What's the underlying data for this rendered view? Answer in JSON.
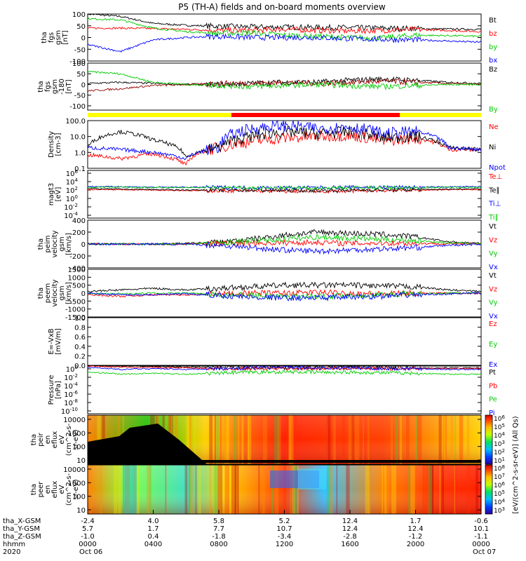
{
  "chart_data": {
    "type": "line",
    "title": "P5 (TH-A) fields and on-board moments overview",
    "x_tick_labels": {
      "tha_X-GSM": [
        "-2.4",
        "4.0",
        "5.8",
        "5.2",
        "12.4",
        "1.7",
        "-0.6"
      ],
      "tha_Y-GSM": [
        "5.7",
        "1.7",
        "7.7",
        "10.7",
        "12.4",
        "12.4",
        "10.1"
      ],
      "tha_Z-GSM": [
        "-1.0",
        "0.4",
        "-1.8",
        "-3.4",
        "-2.8",
        "-1.2",
        "-1.1"
      ],
      "hhmm": [
        "0000",
        "0400",
        "0800",
        "1200",
        "1600",
        "2000",
        "0000"
      ],
      "dates": [
        "Oct 06",
        "",
        "",
        "",
        "",
        "",
        "Oct 07"
      ]
    },
    "x_row_labels": [
      "tha_X-GSM",
      "tha_Y-GSM",
      "tha_Z-GSM",
      "hhmm",
      "2020"
    ],
    "x_range_hours": [
      0,
      24
    ],
    "panels": [
      {
        "id": "fgs-gsm",
        "ylabel": [
          "tha",
          "fgs",
          "gsm",
          "[nT]"
        ],
        "yticks": [
          "100",
          "50",
          "0",
          "-50",
          "-100"
        ],
        "yrange": [
          -100,
          100
        ],
        "series": [
          {
            "name": "Bt",
            "color": "#000000",
            "values": [
              100,
              90,
              60,
              52,
              48,
              45,
              44,
              43,
              42,
              40,
              38,
              36,
              35
            ]
          },
          {
            "name": "bz",
            "color": "#ff0000",
            "values": [
              40,
              40,
              38,
              35,
              30,
              30,
              36,
              30,
              28,
              30,
              34,
              30,
              25
            ]
          },
          {
            "name": "by",
            "color": "#00cc00",
            "values": [
              80,
              75,
              40,
              25,
              18,
              20,
              10,
              5,
              0,
              -2,
              10,
              8,
              5
            ]
          },
          {
            "name": "bx",
            "color": "#0000ff",
            "values": [
              -30,
              -60,
              -10,
              0,
              5,
              0,
              0,
              0,
              -5,
              -8,
              -10,
              -15,
              -20
            ]
          }
        ]
      },
      {
        "id": "fgs-gse",
        "ylabel": [
          "tha",
          "fgs",
          "gsm",
          "-180",
          "[nT]"
        ],
        "yticks": [
          "100",
          "50",
          "0",
          "-50",
          "-100"
        ],
        "yrange": [
          -120,
          100
        ],
        "series": [
          {
            "name": "Bz",
            "color": "#000000",
            "values": [
              5,
              10,
              5,
              0,
              0,
              5,
              10,
              10,
              20,
              25,
              20,
              10,
              5
            ]
          },
          {
            "name": "",
            "color": "#990000",
            "values": [
              -30,
              -20,
              -5,
              0,
              5,
              5,
              10,
              5,
              10,
              15,
              10,
              5,
              0
            ]
          },
          {
            "name": "By",
            "color": "#00cc00",
            "values": [
              60,
              50,
              10,
              0,
              -5,
              -10,
              -5,
              0,
              -5,
              -10,
              -5,
              0,
              0
            ]
          }
        ]
      },
      {
        "id": "density",
        "ylabel": [
          "Density",
          "[cm-3]"
        ],
        "yticks": [
          "100.0",
          "10.0",
          "1.0",
          "0.1"
        ],
        "ylog": true,
        "yrange": [
          0.1,
          100
        ],
        "series": [
          {
            "name": "Ne",
            "color": "#ff0000",
            "values": [
              0.7,
              0.4,
              0.8,
              0.15,
              2,
              5,
              8,
              10,
              12,
              5,
              8,
              1.5,
              1.5
            ]
          },
          {
            "name": "Ni",
            "color": "#000000",
            "values": [
              2,
              20,
              6,
              0.5,
              2,
              10,
              20,
              15,
              20,
              8,
              10,
              2,
              1.5
            ]
          },
          {
            "name": "Npot",
            "color": "#0000ff",
            "values": [
              2,
              1.5,
              1,
              0.4,
              2,
              30,
              50,
              30,
              40,
              15,
              20,
              2,
              1.5
            ]
          }
        ]
      },
      {
        "id": "temperature",
        "ylabel": [
          "magt3",
          "[eV]"
        ],
        "ytick_powers": [
          "6",
          "4",
          "2",
          "0",
          "-2",
          "-4"
        ],
        "ylog": true,
        "series": [
          {
            "name": "Te⊥",
            "color": "#ff0000",
            "values": [
              100,
              90,
              80,
              60,
              50,
              50,
              40,
              40,
              45,
              60,
              70,
              90,
              100
            ]
          },
          {
            "name": "Te∥",
            "color": "#000000",
            "values": [
              150,
              120,
              100,
              80,
              80,
              70,
              60,
              60,
              70,
              80,
              90,
              120,
              150
            ]
          },
          {
            "name": "Ti⊥",
            "color": "#0000ff",
            "values": [
              400,
              400,
              300,
              300,
              300,
              250,
              250,
              250,
              300,
              300,
              300,
              350,
              400
            ]
          },
          {
            "name": "Ti∥",
            "color": "#00cc00",
            "values": [
              300,
              300,
              250,
              250,
              250,
              200,
              200,
              200,
              250,
              250,
              250,
              300,
              300
            ]
          }
        ]
      },
      {
        "id": "peim-velocity",
        "ylabel": [
          "tha",
          "peim",
          "velocity",
          "gsm",
          "[km/s]"
        ],
        "yticks": [
          "400",
          "200",
          "0",
          "-200",
          "-400"
        ],
        "yrange": [
          -400,
          400
        ],
        "series": [
          {
            "name": "Vt",
            "color": "#000000",
            "values": [
              0,
              0,
              0,
              10,
              30,
              80,
              150,
              200,
              180,
              160,
              120,
              40,
              10
            ]
          },
          {
            "name": "Vz",
            "color": "#ff0000",
            "values": [
              0,
              0,
              0,
              0,
              10,
              20,
              20,
              30,
              10,
              20,
              10,
              5,
              0
            ]
          },
          {
            "name": "Vy",
            "color": "#00cc00",
            "values": [
              0,
              0,
              0,
              0,
              20,
              50,
              80,
              120,
              100,
              80,
              60,
              20,
              5
            ]
          },
          {
            "name": "Vx",
            "color": "#0000ff",
            "values": [
              0,
              0,
              0,
              -5,
              -20,
              -60,
              -100,
              -120,
              -100,
              -80,
              -60,
              -20,
              -5
            ]
          }
        ]
      },
      {
        "id": "peem-velocity",
        "ylabel": [
          "tha",
          "peem",
          "velocity",
          "gsm",
          "[km/s]"
        ],
        "yticks": [
          "1500",
          "1000",
          "500",
          "0",
          "-500",
          "-1000",
          "-1500"
        ],
        "yrange": [
          -1500,
          1500
        ],
        "series": [
          {
            "name": "Vt",
            "color": "#000000",
            "values": [
              100,
              200,
              300,
              200,
              300,
              400,
              500,
              500,
              500,
              450,
              400,
              200,
              100
            ]
          },
          {
            "name": "Vz",
            "color": "#ff0000",
            "values": [
              -100,
              -200,
              -100,
              -100,
              -50,
              0,
              0,
              50,
              0,
              -50,
              0,
              0,
              0
            ]
          },
          {
            "name": "Vy",
            "color": "#00cc00",
            "values": [
              0,
              -50,
              0,
              0,
              -100,
              -150,
              -200,
              -200,
              -150,
              -100,
              -50,
              0,
              0
            ]
          },
          {
            "name": "Vx",
            "color": "#0000ff",
            "values": [
              0,
              -100,
              -100,
              -50,
              -150,
              -250,
              -300,
              -300,
              -250,
              -200,
              -100,
              -50,
              0
            ]
          }
        ]
      },
      {
        "id": "efield",
        "ylabel": [
          "E=-VxB",
          "[mV/m]"
        ],
        "yticks": [
          "1.0",
          "0.8",
          "0.6",
          "0.4",
          "0.2",
          "0.0"
        ],
        "yrange": [
          0,
          1
        ],
        "series": [
          {
            "name": "Ez",
            "color": "#ff0000",
            "values": []
          },
          {
            "name": "Ey",
            "color": "#00cc00",
            "values": []
          },
          {
            "name": "Ex",
            "color": "#0000ff",
            "values": []
          }
        ]
      },
      {
        "id": "pressure",
        "ylabel": [
          "Pressure",
          "[nPa]"
        ],
        "ytick_powers": [
          "0",
          "-2",
          "-4",
          "-6",
          "-8",
          "-10"
        ],
        "ylog": true,
        "series": [
          {
            "name": "Pt",
            "color": "#000000",
            "values": [
              1.5,
              1,
              0.8,
              0.6,
              0.5,
              0.5,
              0.4,
              0.4,
              0.5,
              0.5,
              0.4,
              0.4,
              0.4
            ]
          },
          {
            "name": "Pb",
            "color": "#ff0000",
            "values": [
              1,
              0.6,
              0.5,
              0.4,
              0.3,
              0.3,
              0.3,
              0.3,
              0.3,
              0.3,
              0.3,
              0.3,
              0.3
            ]
          },
          {
            "name": "Pe",
            "color": "#00cc00",
            "values": [
              0.05,
              0.02,
              0.03,
              0.02,
              0.03,
              0.05,
              0.06,
              0.05,
              0.05,
              0.04,
              0.03,
              0.02,
              0.02
            ]
          },
          {
            "name": "Pi",
            "color": "#0000ff",
            "values": [
              0.5,
              0.2,
              0.3,
              0.2,
              0.3,
              0.4,
              0.5,
              0.4,
              0.4,
              0.3,
              0.3,
              0.2,
              0.2
            ]
          }
        ]
      },
      {
        "id": "peir-eflux",
        "type": "heatmap",
        "ylabel": [
          "tha",
          "peir",
          "en",
          "eflux",
          "eV",
          "(cm^2-s-",
          "sr-eV)"
        ],
        "yticks": [
          "10000",
          "1000",
          "100",
          "10"
        ]
      },
      {
        "id": "peer-eflux",
        "type": "heatmap",
        "ylabel": [
          "tha",
          "peer",
          "en",
          "eflux",
          "eV",
          "(cm^2-s-",
          "sr-eV)"
        ],
        "yticks": [
          "10000",
          "1000",
          "100",
          "10"
        ]
      }
    ],
    "colorbar": {
      "label": "[eV/(cm^2-s-sr-eV)] (All Qs)",
      "tick_powers": [
        "6",
        "5",
        "4",
        "3",
        "2",
        "1"
      ],
      "lower_tick_powers": [
        "8",
        "7",
        "6",
        "5",
        "4",
        "3"
      ]
    }
  }
}
